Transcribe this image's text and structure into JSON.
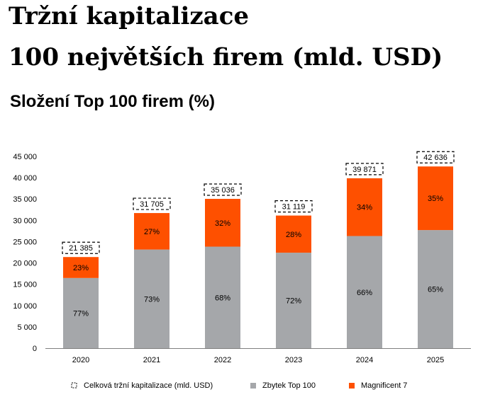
{
  "page": {
    "title_line1": "Tržní kapitalizace",
    "title_line2": "100 největších firem (mld. USD)",
    "subtitle": "Složení Top 100 firem (%)"
  },
  "colors": {
    "rest": "#a5a7aa",
    "mag7": "#fe5000",
    "axis": "#7f7f7f"
  },
  "chart_data": {
    "type": "bar",
    "stacked": true,
    "categories": [
      "2020",
      "2021",
      "2022",
      "2023",
      "2024",
      "2025"
    ],
    "totals": [
      21385,
      31705,
      35036,
      31119,
      39871,
      42636
    ],
    "total_labels": [
      "21 385",
      "31 705",
      "35 036",
      "31 119",
      "39 871",
      "42 636"
    ],
    "series": [
      {
        "name": "Zbytek Top 100",
        "percent": [
          77,
          73,
          68,
          72,
          66,
          65
        ],
        "labels": [
          "77%",
          "73%",
          "68%",
          "72%",
          "66%",
          "65%"
        ]
      },
      {
        "name": "Magnificent 7",
        "percent": [
          23,
          27,
          32,
          28,
          34,
          35
        ],
        "labels": [
          "23%",
          "27%",
          "32%",
          "28%",
          "34%",
          "35%"
        ]
      }
    ],
    "totals_legend": "Celková tržní kapitalizace (mld. USD)",
    "ylim": [
      0,
      45000
    ],
    "yticks": [
      0,
      5000,
      10000,
      15000,
      20000,
      25000,
      30000,
      35000,
      40000,
      45000
    ],
    "ytick_labels": [
      "0",
      "5 000",
      "10 000",
      "15 000",
      "20 000",
      "25 000",
      "30 000",
      "35 000",
      "40 000",
      "45 000"
    ],
    "legend_position": "bottom"
  }
}
